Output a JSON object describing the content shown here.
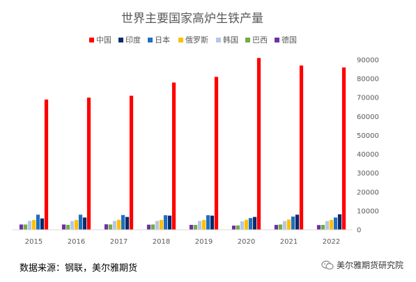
{
  "chart_data": {
    "type": "bar",
    "title": "世界主要国家高炉生铁产量",
    "categories": [
      "2015",
      "2016",
      "2017",
      "2018",
      "2019",
      "2020",
      "2021",
      "2022"
    ],
    "series": [
      {
        "name": "中国",
        "color": "#ff0000",
        "values": [
          69000,
          70000,
          71000,
          78000,
          81000,
          91000,
          87000,
          86000
        ]
      },
      {
        "name": "印度",
        "color": "#0d2a6a",
        "values": [
          6000,
          6500,
          6800,
          7500,
          7500,
          6800,
          8000,
          8200
        ]
      },
      {
        "name": "日本",
        "color": "#1f6fc0",
        "values": [
          8000,
          8000,
          7800,
          7700,
          7700,
          6200,
          7000,
          6500
        ]
      },
      {
        "name": "俄罗斯",
        "color": "#ffc000",
        "values": [
          5200,
          5200,
          5300,
          5200,
          5200,
          5300,
          5400,
          5200
        ]
      },
      {
        "name": "韩国",
        "color": "#b4c7e7",
        "values": [
          4700,
          4600,
          4700,
          4700,
          4700,
          4500,
          4600,
          4600
        ]
      },
      {
        "name": "巴西",
        "color": "#70ad47",
        "values": [
          2800,
          2600,
          2800,
          2800,
          2600,
          2300,
          2800,
          2600
        ]
      },
      {
        "name": "德国",
        "color": "#7030a0",
        "values": [
          2800,
          2800,
          2900,
          2700,
          2600,
          2200,
          2600,
          2500
        ]
      }
    ],
    "series_order_in_group": [
      "德国",
      "巴西",
      "韩国",
      "俄罗斯",
      "日本",
      "印度",
      "中国"
    ],
    "ylim": [
      0,
      90000
    ],
    "yticks": [
      0,
      10000,
      20000,
      30000,
      40000,
      50000,
      60000,
      70000,
      80000,
      90000
    ],
    "grid": false,
    "legend_position": "top",
    "y_axis_side": "right"
  },
  "footer": {
    "source": "数据来源：钢联，美尔雅期货",
    "watermark": "美尔雅期货研究院"
  }
}
